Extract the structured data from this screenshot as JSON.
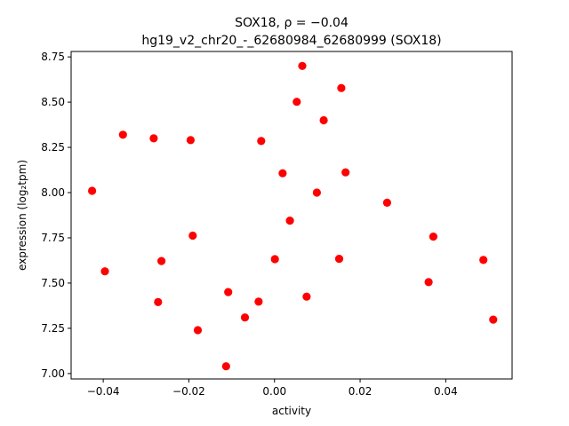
{
  "chart_data": {
    "type": "scatter",
    "title_line1": "SOX18, ρ = −0.04",
    "title_line2": "hg19_v2_chr20_-_62680984_62680999 (SOX18)",
    "xlabel": "activity",
    "ylabel": "expression (log₂tpm)",
    "xlim": [
      -0.0475,
      0.0555
    ],
    "ylim": [
      6.97,
      8.78
    ],
    "x_ticks": [
      {
        "value": -0.04,
        "label": "−0.04"
      },
      {
        "value": -0.02,
        "label": "−0.02"
      },
      {
        "value": 0.0,
        "label": "0.00"
      },
      {
        "value": 0.02,
        "label": "0.02"
      },
      {
        "value": 0.04,
        "label": "0.04"
      }
    ],
    "y_ticks": [
      {
        "value": 7.0,
        "label": "7.00"
      },
      {
        "value": 7.25,
        "label": "7.25"
      },
      {
        "value": 7.5,
        "label": "7.50"
      },
      {
        "value": 7.75,
        "label": "7.75"
      },
      {
        "value": 8.0,
        "label": "8.00"
      },
      {
        "value": 8.25,
        "label": "8.25"
      },
      {
        "value": 8.5,
        "label": "8.50"
      },
      {
        "value": 8.75,
        "label": "8.75"
      }
    ],
    "grid": false,
    "marker_color": "#ff0000",
    "points": [
      {
        "x": -0.0426,
        "y": 8.01
      },
      {
        "x": -0.0396,
        "y": 7.565
      },
      {
        "x": -0.0354,
        "y": 8.32
      },
      {
        "x": -0.0282,
        "y": 8.3
      },
      {
        "x": -0.0272,
        "y": 7.395
      },
      {
        "x": -0.0264,
        "y": 7.622
      },
      {
        "x": -0.0196,
        "y": 8.29
      },
      {
        "x": -0.0191,
        "y": 7.762
      },
      {
        "x": -0.0179,
        "y": 7.24
      },
      {
        "x": -0.0113,
        "y": 7.04
      },
      {
        "x": -0.0108,
        "y": 7.45
      },
      {
        "x": -0.0069,
        "y": 7.31
      },
      {
        "x": -0.0037,
        "y": 7.397
      },
      {
        "x": -0.0031,
        "y": 8.285
      },
      {
        "x": 0.0001,
        "y": 7.632
      },
      {
        "x": 0.0019,
        "y": 8.107
      },
      {
        "x": 0.0036,
        "y": 7.845
      },
      {
        "x": 0.0052,
        "y": 8.502
      },
      {
        "x": 0.0065,
        "y": 8.7
      },
      {
        "x": 0.0075,
        "y": 7.425
      },
      {
        "x": 0.0099,
        "y": 8.0
      },
      {
        "x": 0.0115,
        "y": 8.4
      },
      {
        "x": 0.0151,
        "y": 7.634
      },
      {
        "x": 0.0156,
        "y": 8.578
      },
      {
        "x": 0.0166,
        "y": 8.112
      },
      {
        "x": 0.0263,
        "y": 7.944
      },
      {
        "x": 0.036,
        "y": 7.505
      },
      {
        "x": 0.0371,
        "y": 7.757
      },
      {
        "x": 0.0488,
        "y": 7.628
      },
      {
        "x": 0.0511,
        "y": 7.298
      }
    ]
  }
}
